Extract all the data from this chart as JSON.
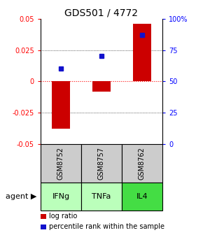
{
  "title": "GDS501 / 4772",
  "samples": [
    "GSM8752",
    "GSM8757",
    "GSM8762"
  ],
  "agents": [
    "IFNg",
    "TNFa",
    "IL4"
  ],
  "log_ratios": [
    -0.038,
    -0.008,
    0.046
  ],
  "percentile_ranks": [
    0.6,
    0.7,
    0.87
  ],
  "ylim": [
    -0.05,
    0.05
  ],
  "yticks_left": [
    -0.05,
    -0.025,
    0,
    0.025,
    0.05
  ],
  "yticks_right": [
    0,
    25,
    50,
    75,
    100
  ],
  "bar_color": "#cc0000",
  "dot_color": "#1111cc",
  "agent_colors": [
    "#bbffbb",
    "#bbffbb",
    "#44dd44"
  ],
  "sample_bg": "#cccccc",
  "legend_bar_label": "log ratio",
  "legend_dot_label": "percentile rank within the sample",
  "agent_label": "agent ▶",
  "title_fontsize": 10,
  "tick_fontsize": 7,
  "table_fontsize": 7,
  "legend_fontsize": 7
}
